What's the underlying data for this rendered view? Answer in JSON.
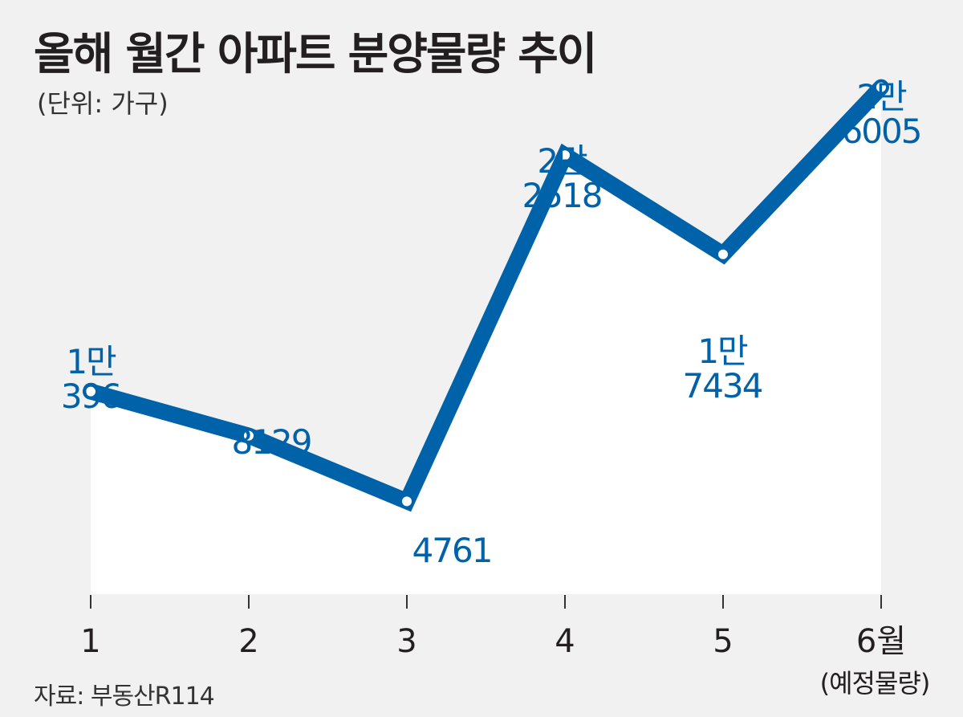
{
  "title": "올해 월간 아파트 분양물량 추이",
  "unit_note": "(단위: 가구)",
  "source": "자료: 부동산R114",
  "colors": {
    "line": "#0062a8",
    "area": "#ffffff",
    "background": "#f1f1f1",
    "label": "#0062a8",
    "text": "#231f20"
  },
  "chart_data": {
    "type": "line",
    "categories": [
      "1",
      "2",
      "3",
      "4",
      "5",
      "6월"
    ],
    "category_subtitle_last": "(예정물량)",
    "values": [
      10396,
      8129,
      4761,
      22518,
      17434,
      26005
    ],
    "data_labels": [
      [
        "1만",
        "396"
      ],
      [
        "8129"
      ],
      [
        "4761"
      ],
      [
        "2만",
        "2518"
      ],
      [
        "1만",
        "7434"
      ],
      [
        "2만",
        "6005"
      ]
    ],
    "ylim": [
      0,
      30000
    ],
    "grid": false,
    "legend": "none",
    "area_fill": true
  }
}
